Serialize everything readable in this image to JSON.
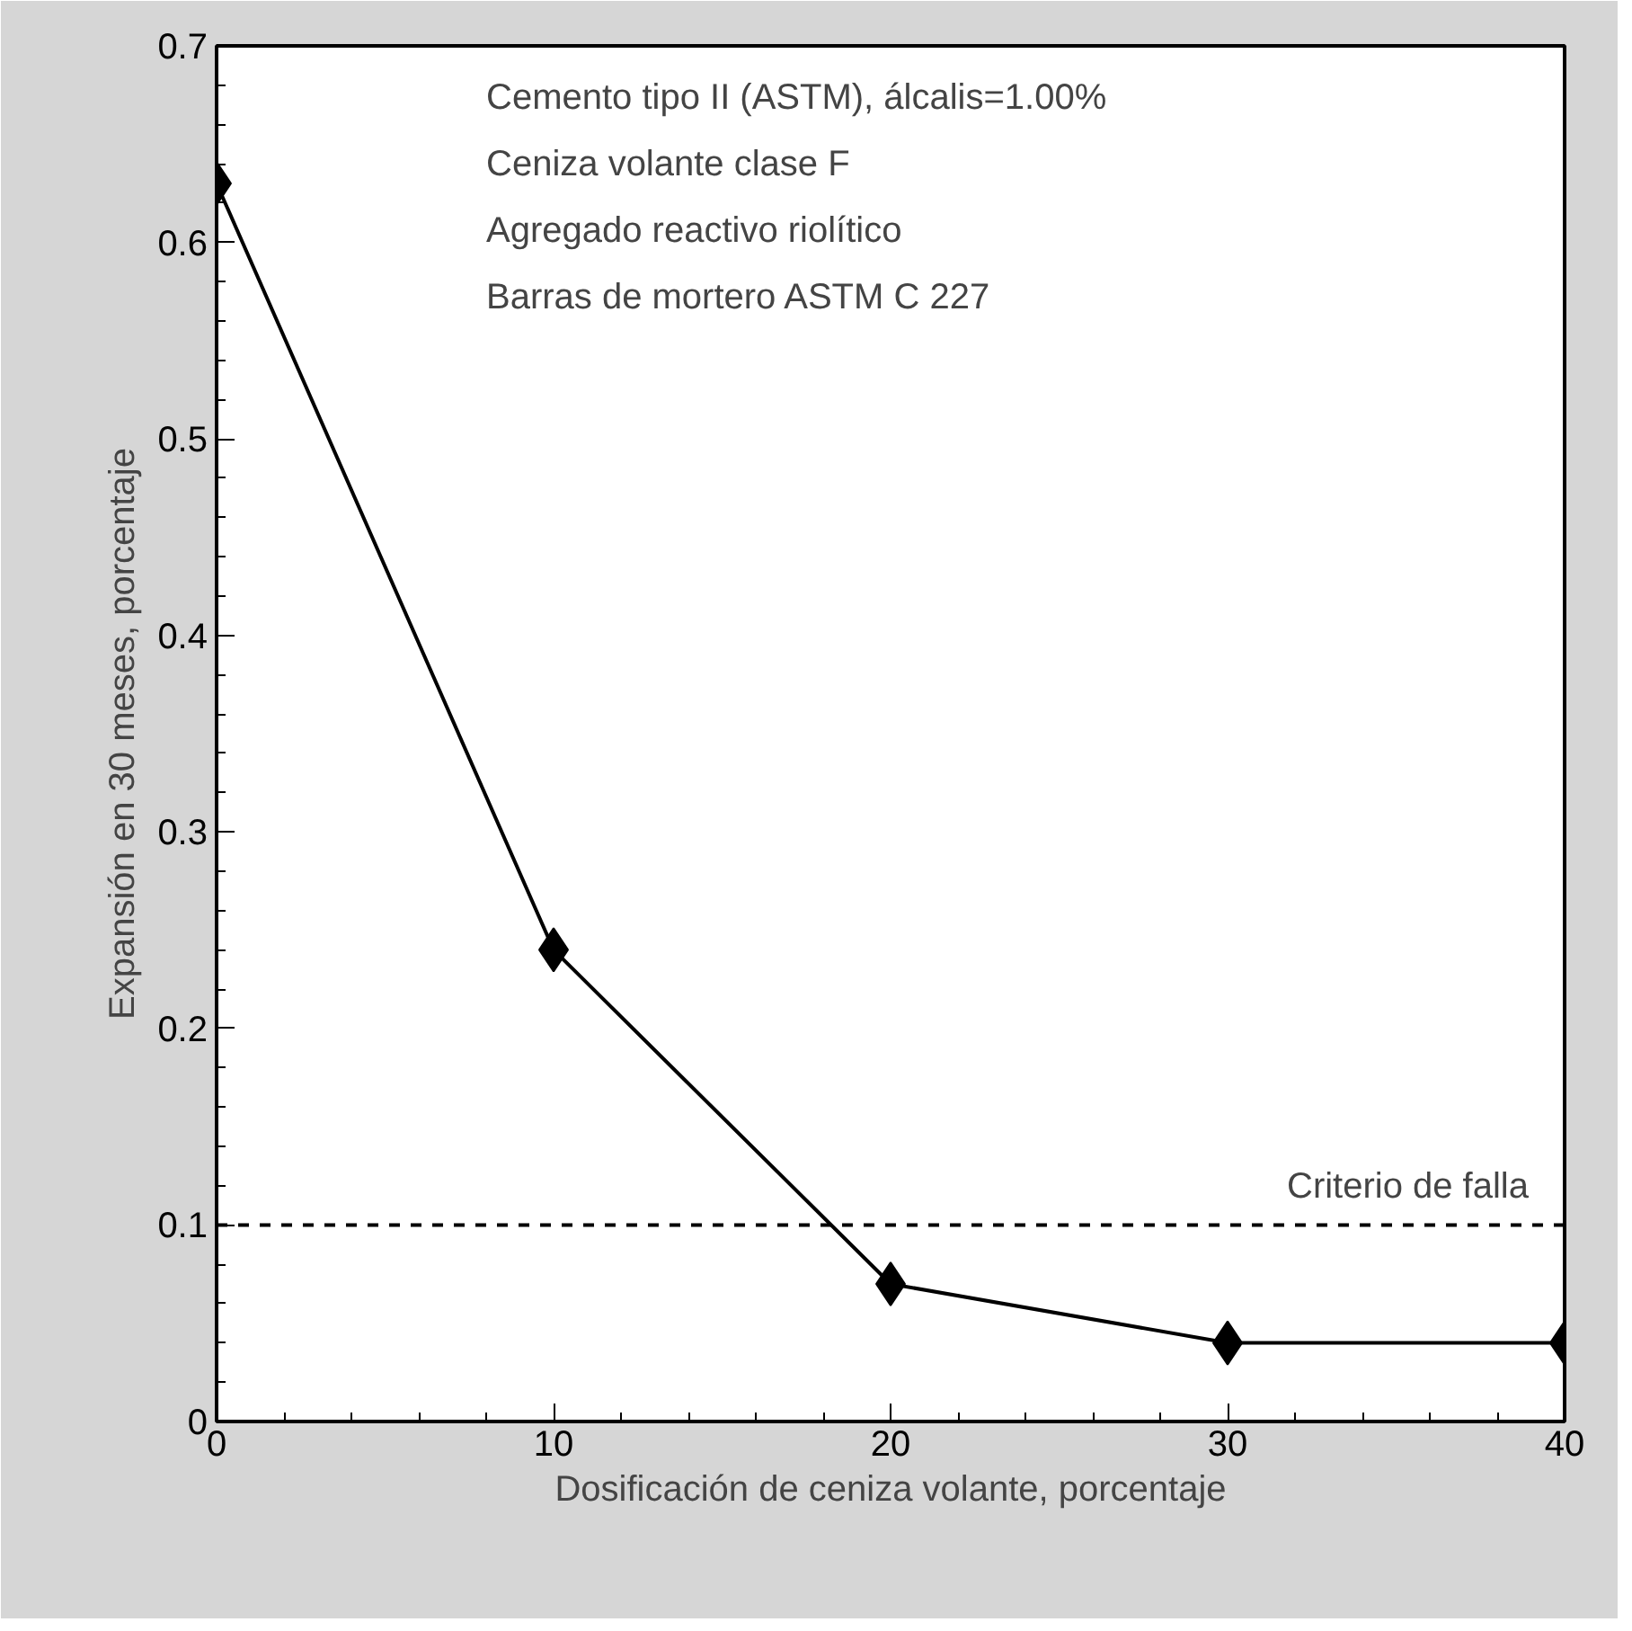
{
  "chart_data": {
    "type": "line",
    "xlabel": "Dosificación de ceniza volante, porcentaje",
    "ylabel": "Expansión en 30 meses, porcentaje",
    "x": [
      0,
      10,
      20,
      30,
      40
    ],
    "series": [
      {
        "color": "#000000",
        "values": [
          0.63,
          0.24,
          0.07,
          0.04,
          0.04
        ]
      }
    ],
    "xlim": [
      0,
      40
    ],
    "xticks": [
      0,
      10,
      20,
      30,
      40
    ],
    "ylim": [
      0,
      0.7
    ],
    "yticks": [
      0,
      0.1,
      0.2,
      0.3,
      0.4,
      0.5,
      0.6,
      0.7
    ],
    "marker": "diamond",
    "line_style": "solid",
    "grid": false,
    "ref_lines": [
      {
        "axis": "y",
        "value": 0.1,
        "label": "Criterio de falla",
        "color": "#000000",
        "line_style": "dashed"
      }
    ],
    "annotations": [
      "Cemento tipo II (ASTM), álcalis=1.00%",
      "Ceniza volante clase F",
      "Agregado reactivo riolítico",
      "Barras de mortero ASTM C 227"
    ]
  }
}
